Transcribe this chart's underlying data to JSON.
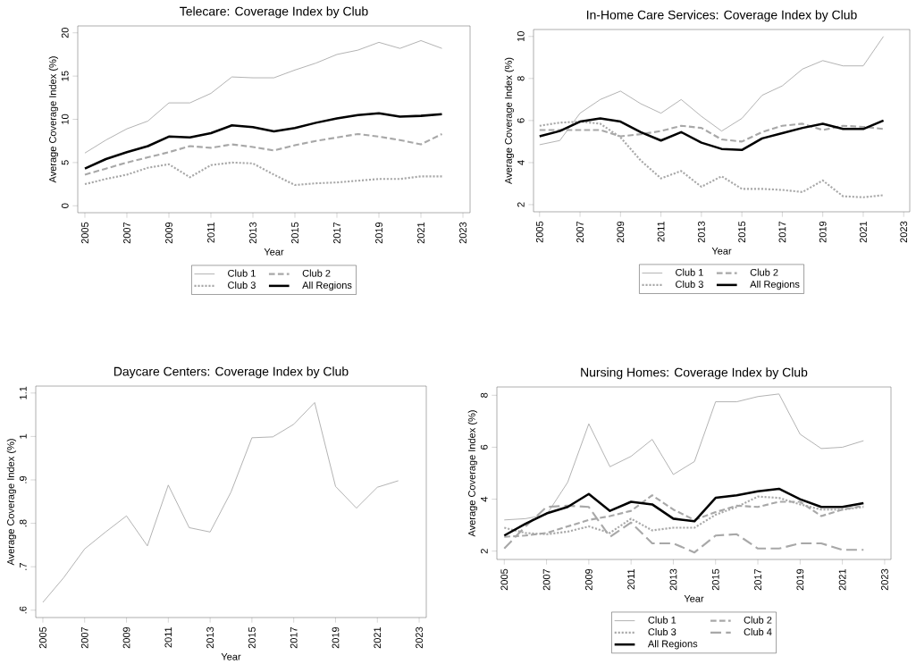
{
  "chart_data": [
    {
      "type": "line",
      "title": "Telecare: Coverage Index by Club",
      "xlabel": "Year",
      "ylabel": "Average Coverage Index (%)",
      "x": [
        2005,
        2006,
        2007,
        2008,
        2009,
        2010,
        2011,
        2012,
        2013,
        2014,
        2015,
        2016,
        2017,
        2018,
        2019,
        2020,
        2021,
        2022
      ],
      "xlim": [
        2004.66,
        2023.34
      ],
      "xticks": [
        2005,
        2007,
        2009,
        2011,
        2013,
        2015,
        2017,
        2019,
        2021,
        2023
      ],
      "ylim": [
        -0.8,
        20.8
      ],
      "yticks": [
        0,
        5,
        10,
        15,
        20
      ],
      "legend": "bottom",
      "grid": false,
      "series": [
        {
          "name": "Club 1",
          "color": "#a0a0a0",
          "line_style": "solid",
          "values": [
            6.1,
            7.6,
            8.9,
            9.8,
            11.9,
            11.9,
            13.0,
            14.9,
            14.8,
            14.8,
            15.7,
            16.5,
            17.5,
            18.0,
            18.9,
            18.2,
            19.1,
            18.2
          ]
        },
        {
          "name": "Club 2",
          "color": "#a8a8a8",
          "line_style": "dashed",
          "values": [
            3.6,
            4.3,
            5.0,
            5.6,
            6.2,
            6.9,
            6.7,
            7.1,
            6.8,
            6.4,
            7.0,
            7.5,
            7.9,
            8.3,
            8.0,
            7.6,
            7.1,
            8.3
          ]
        },
        {
          "name": "Club 3",
          "color": "#a8a8a8",
          "line_style": "dotted",
          "values": [
            2.5,
            3.1,
            3.6,
            4.4,
            4.8,
            3.3,
            4.7,
            5.0,
            4.9,
            3.6,
            2.4,
            2.6,
            2.7,
            2.9,
            3.1,
            3.1,
            3.4,
            3.4
          ]
        },
        {
          "name": "All Regions",
          "color": "#000000",
          "line_style": "solid",
          "values": [
            4.3,
            5.4,
            6.2,
            6.9,
            8.0,
            7.9,
            8.4,
            9.3,
            9.1,
            8.6,
            9.0,
            9.6,
            10.1,
            10.5,
            10.7,
            10.3,
            10.4,
            10.6
          ]
        }
      ]
    },
    {
      "type": "line",
      "title": "In-Home Care Services: Coverage Index by Club",
      "xlabel": "Year",
      "ylabel": "Average Coverage Index (%)",
      "x": [
        2005,
        2006,
        2007,
        2008,
        2009,
        2010,
        2011,
        2012,
        2013,
        2014,
        2015,
        2016,
        2017,
        2018,
        2019,
        2020,
        2021,
        2022
      ],
      "xlim": [
        2004.7,
        2023.3
      ],
      "xticks": [
        2005,
        2007,
        2009,
        2011,
        2013,
        2015,
        2017,
        2019,
        2021,
        2023
      ],
      "ylim": [
        1.66,
        10.33
      ],
      "yticks": [
        2,
        4,
        6,
        8,
        10
      ],
      "legend": "bottom",
      "grid": false,
      "series": [
        {
          "name": "Club 1",
          "color": "#a0a0a0",
          "line_style": "solid",
          "values": [
            4.85,
            5.05,
            6.35,
            7.0,
            7.4,
            6.8,
            6.35,
            7.0,
            6.2,
            5.5,
            6.1,
            7.2,
            7.65,
            8.45,
            8.85,
            8.6,
            8.6,
            10.0
          ]
        },
        {
          "name": "Club 2",
          "color": "#a8a8a8",
          "line_style": "dashed",
          "values": [
            5.55,
            5.55,
            5.55,
            5.55,
            5.25,
            5.35,
            5.5,
            5.75,
            5.65,
            5.1,
            5.0,
            5.45,
            5.75,
            5.85,
            5.55,
            5.75,
            5.7,
            5.6
          ]
        },
        {
          "name": "Club 3",
          "color": "#a8a8a8",
          "line_style": "dotted",
          "values": [
            5.75,
            5.9,
            5.95,
            5.85,
            5.2,
            4.1,
            3.25,
            3.6,
            2.85,
            3.35,
            2.75,
            2.75,
            2.7,
            2.6,
            3.15,
            2.4,
            2.35,
            2.45
          ]
        },
        {
          "name": "All Regions",
          "color": "#000000",
          "line_style": "solid",
          "values": [
            5.25,
            5.5,
            5.95,
            6.1,
            5.95,
            5.45,
            5.05,
            5.45,
            4.95,
            4.65,
            4.6,
            5.15,
            5.4,
            5.65,
            5.85,
            5.6,
            5.6,
            6.0
          ]
        }
      ]
    },
    {
      "type": "line",
      "title": "Daycare Centers: Coverage Index by Club",
      "xlabel": "Year",
      "ylabel": "Average Coverage Index (%)",
      "x": [
        2005,
        2006,
        2007,
        2008,
        2009,
        2010,
        2011,
        2012,
        2013,
        2014,
        2015,
        2016,
        2017,
        2018,
        2019,
        2020,
        2021,
        2022
      ],
      "xlim": [
        2004.66,
        2023.34
      ],
      "xticks": [
        2005,
        2007,
        2009,
        2011,
        2013,
        2015,
        2017,
        2019,
        2021,
        2023
      ],
      "ylim": [
        0.583,
        1.116
      ],
      "yticks": [
        {
          "value": 0.6,
          "label": ".6"
        },
        {
          "value": 0.7,
          "label": ".7"
        },
        {
          "value": 0.8,
          "label": ".8"
        },
        {
          "value": 0.9,
          "label": ".9"
        },
        1,
        1.1
      ],
      "grid": false,
      "series": [
        {
          "color": "#a0a0a0",
          "line_style": "solid",
          "values": [
            0.618,
            0.675,
            0.741,
            0.78,
            0.817,
            0.748,
            0.888,
            0.79,
            0.78,
            0.872,
            0.997,
            0.999,
            1.028,
            1.078,
            0.885,
            0.835,
            0.883,
            0.898
          ]
        }
      ]
    },
    {
      "type": "line",
      "title": "Nursing Homes: Coverage Index by Club",
      "xlabel": "Year",
      "ylabel": "Average Coverage Index (%)",
      "x": [
        2005,
        2006,
        2007,
        2008,
        2009,
        2010,
        2011,
        2012,
        2013,
        2014,
        2015,
        2016,
        2017,
        2018,
        2019,
        2020,
        2021,
        2022
      ],
      "xlim": [
        2004.65,
        2023.3
      ],
      "xticks": [
        2005,
        2007,
        2009,
        2011,
        2013,
        2015,
        2017,
        2019,
        2021,
        2023
      ],
      "ylim": [
        1.68,
        8.32
      ],
      "yticks": [
        2,
        4,
        6,
        8
      ],
      "legend": "bottom",
      "grid": false,
      "series": [
        {
          "name": "Club 1",
          "color": "#a0a0a0",
          "line_style": "solid",
          "values": [
            3.2,
            3.25,
            3.4,
            4.65,
            6.9,
            5.25,
            5.65,
            6.3,
            4.95,
            5.45,
            7.75,
            7.75,
            7.95,
            8.05,
            6.5,
            5.95,
            6.0,
            6.25
          ]
        },
        {
          "name": "Club 2",
          "color": "#a8a8a8",
          "line_style": "dashed",
          "values": [
            2.55,
            2.6,
            2.7,
            2.95,
            3.2,
            3.35,
            3.55,
            4.15,
            3.6,
            3.2,
            3.5,
            3.75,
            3.7,
            3.9,
            3.9,
            3.35,
            3.6,
            3.75
          ]
        },
        {
          "name": "Club 3",
          "color": "#a8a8a8",
          "line_style": "dotted",
          "values": [
            2.9,
            2.7,
            2.65,
            2.75,
            2.95,
            2.7,
            3.25,
            2.8,
            2.9,
            2.9,
            3.4,
            3.7,
            4.1,
            4.05,
            3.8,
            3.6,
            3.6,
            3.7
          ]
        },
        {
          "name": "Club 4",
          "color": "#a8a8a8",
          "line_style": "dashed",
          "values": [
            2.1,
            2.95,
            3.7,
            3.75,
            3.7,
            2.55,
            3.1,
            2.3,
            2.3,
            1.95,
            2.6,
            2.65,
            2.1,
            2.1,
            2.3,
            2.3,
            2.05,
            2.05
          ]
        },
        {
          "name": "All Regions",
          "color": "#000000",
          "line_style": "solid",
          "values": [
            2.6,
            3.05,
            3.45,
            3.7,
            4.2,
            3.55,
            3.9,
            3.8,
            3.25,
            3.15,
            4.05,
            4.15,
            4.3,
            4.4,
            4.0,
            3.7,
            3.7,
            3.85
          ]
        }
      ]
    }
  ]
}
